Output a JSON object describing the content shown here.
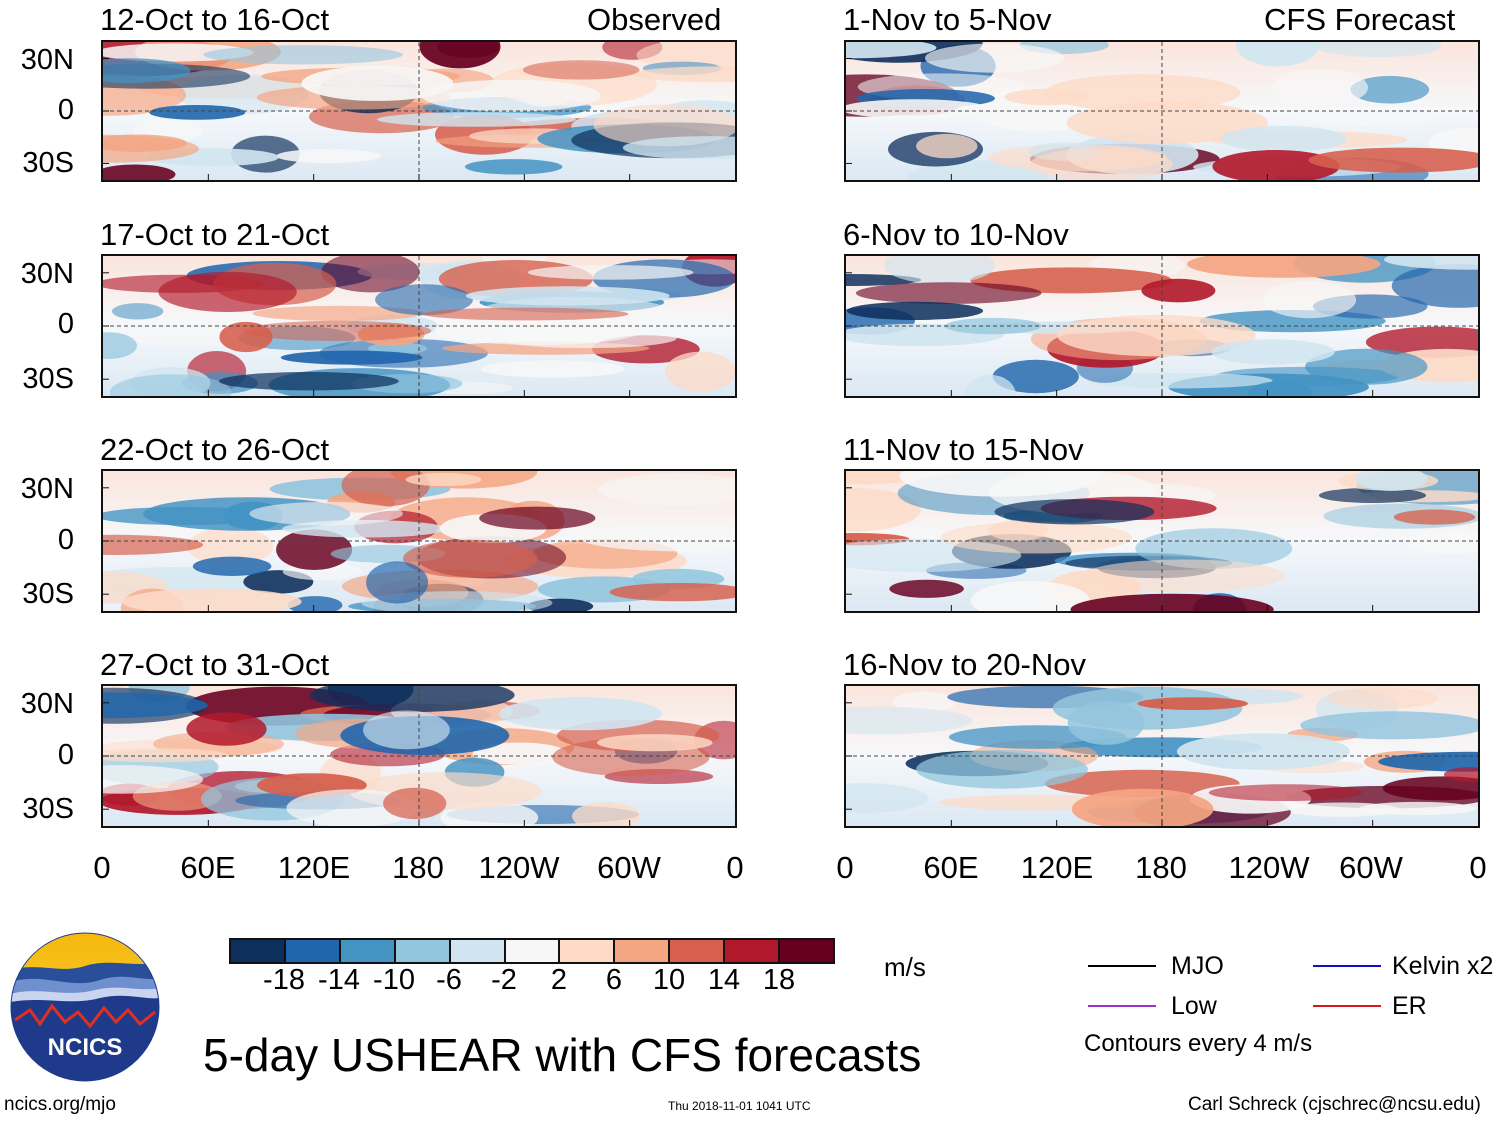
{
  "panels": [
    {
      "title": "12-Oct to 16-Oct",
      "label": "Observed"
    },
    {
      "title": "1-Nov to 5-Nov",
      "label": "CFS Forecast"
    },
    {
      "title": "17-Oct to 21-Oct"
    },
    {
      "title": "6-Nov to 10-Nov"
    },
    {
      "title": "22-Oct to 26-Oct"
    },
    {
      "title": "11-Nov to 15-Nov"
    },
    {
      "title": "27-Oct to 31-Oct"
    },
    {
      "title": "16-Nov to 20-Nov"
    }
  ],
  "y_labels": [
    "30N",
    "0",
    "30S"
  ],
  "x_labels": [
    "0",
    "60E",
    "120E",
    "180",
    "120W",
    "60W",
    "0"
  ],
  "colorbar": {
    "colors": [
      "#0d2f5c",
      "#2166ac",
      "#4393c3",
      "#92c5de",
      "#d1e5f0",
      "#f7f7f7",
      "#fddbc7",
      "#f4a582",
      "#d6604d",
      "#b2182b",
      "#67001f"
    ],
    "labels": [
      "-18",
      "-14",
      "-10",
      "-6",
      "-2",
      "2",
      "6",
      "10",
      "14",
      "18"
    ],
    "units": "m/s"
  },
  "legend": {
    "items": [
      {
        "name": "MJO",
        "color": "#000000"
      },
      {
        "name": "Kelvin x2",
        "color": "#1010c0"
      },
      {
        "name": "Low",
        "color": "#9932cc"
      },
      {
        "name": "ER",
        "color": "#d7191c"
      }
    ],
    "note": "Contours every 4 m/s"
  },
  "logo": {
    "text": "NCICS"
  },
  "main_title": "5-day USHEAR with CFS forecasts",
  "footer": {
    "website": "ncics.org/mjo",
    "timestamp": "Thu 2018-11-01 1041 UTC",
    "author": "Carl Schreck (cjschrec@ncsu.edu)"
  },
  "chart_data": {
    "type": "heatmap",
    "title": "5-day USHEAR with CFS forecasts",
    "variable": "zonal wind shear (USHEAR)",
    "units": "m/s",
    "x_axis": {
      "labels": [
        "0",
        "60E",
        "120E",
        "180",
        "120W",
        "60W",
        "0"
      ],
      "range_deg_east": [
        0,
        360
      ]
    },
    "y_axis": {
      "labels": [
        "30N",
        "0",
        "30S"
      ],
      "range_deg": [
        -40,
        40
      ]
    },
    "color_levels": [
      -18,
      -14,
      -10,
      -6,
      -2,
      2,
      6,
      10,
      14,
      18
    ],
    "contour_interval": 4,
    "series": [
      {
        "name": "Observed",
        "periods": [
          "12-Oct to 16-Oct",
          "17-Oct to 21-Oct",
          "22-Oct to 26-Oct",
          "27-Oct to 31-Oct"
        ]
      },
      {
        "name": "CFS Forecast",
        "periods": [
          "1-Nov to 5-Nov",
          "6-Nov to 10-Nov",
          "11-Nov to 15-Nov",
          "16-Nov to 20-Nov"
        ]
      }
    ]
  }
}
